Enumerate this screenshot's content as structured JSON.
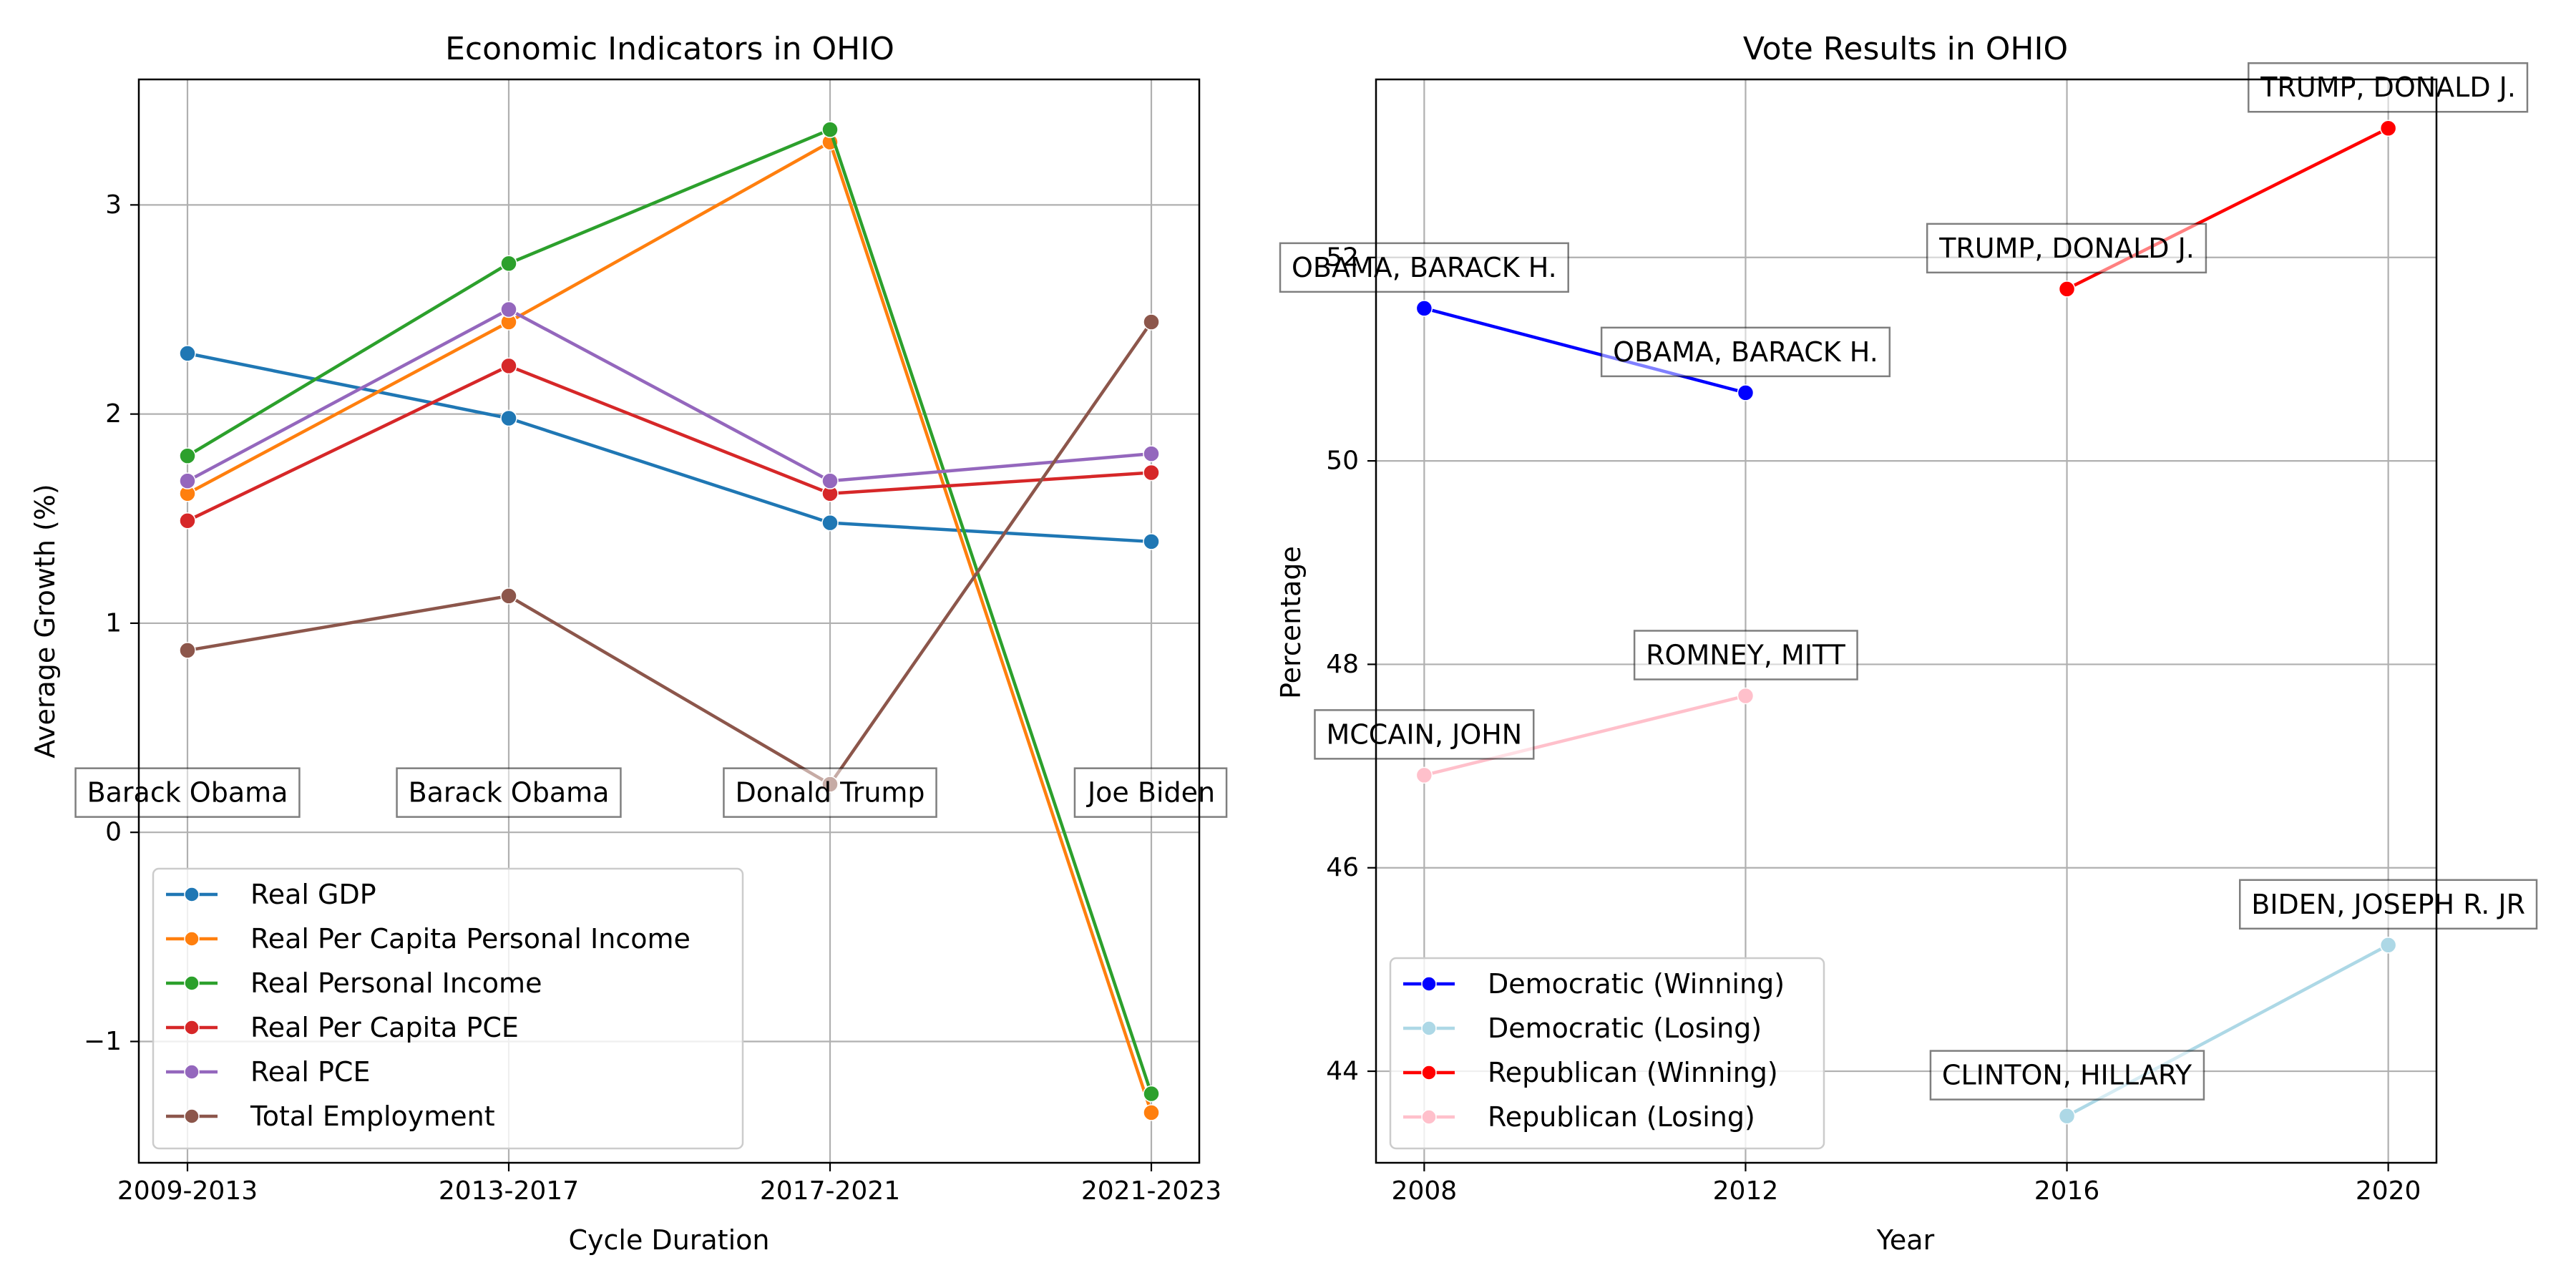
{
  "chart_data": [
    {
      "type": "line",
      "title": "Economic Indicators in OHIO",
      "xlabel": "Cycle Duration",
      "ylabel": "Average Growth (%)",
      "categories": [
        "2009-2013",
        "2013-2017",
        "2017-2021",
        "2021-2023"
      ],
      "ylim": [
        -1.58,
        3.6
      ],
      "yticks": [
        -1,
        0,
        1,
        2,
        3
      ],
      "yticklabels": [
        "−1",
        "0",
        "1",
        "2",
        "3"
      ],
      "grid": true,
      "legend_position": "lower-left",
      "series": [
        {
          "name": "Real GDP",
          "color": "#1f77b4",
          "values": [
            2.29,
            1.98,
            1.48,
            1.39
          ]
        },
        {
          "name": "Real Per Capita Personal Income",
          "color": "#ff7f0e",
          "values": [
            1.62,
            2.44,
            3.3,
            -1.34
          ]
        },
        {
          "name": "Real Personal Income",
          "color": "#2ca02c",
          "values": [
            1.8,
            2.72,
            3.36,
            -1.25
          ]
        },
        {
          "name": "Real Per Capita PCE",
          "color": "#d62728",
          "values": [
            1.49,
            2.23,
            1.62,
            1.72
          ]
        },
        {
          "name": "Real PCE",
          "color": "#9467bd",
          "values": [
            1.68,
            2.5,
            1.68,
            1.81
          ]
        },
        {
          "name": "Total Employment",
          "color": "#8c564b",
          "values": [
            0.87,
            1.13,
            0.23,
            2.44
          ]
        }
      ],
      "annotations": [
        {
          "text": "Barack Obama",
          "category": "2009-2013",
          "y": 0.19
        },
        {
          "text": "Barack Obama",
          "category": "2013-2017",
          "y": 0.19
        },
        {
          "text": "Donald Trump",
          "category": "2017-2021",
          "y": 0.19
        },
        {
          "text": "Joe Biden",
          "category": "2021-2023",
          "y": 0.19
        }
      ]
    },
    {
      "type": "line",
      "title": "Vote Results in OHIO",
      "xlabel": "Year",
      "ylabel": "Percentage",
      "xticks": [
        2008,
        2012,
        2016,
        2020
      ],
      "xlim": [
        2007.4,
        2020.6
      ],
      "ylim": [
        43.1,
        53.75
      ],
      "yticks": [
        44,
        46,
        48,
        50,
        52
      ],
      "grid": true,
      "legend_position": "lower-left",
      "series": [
        {
          "name": "Democratic (Winning)",
          "color": "#0000ff",
          "x": [
            2008,
            2012
          ],
          "values": [
            51.5,
            50.67
          ]
        },
        {
          "name": "Democratic (Losing)",
          "color": "#add8e6",
          "x": [
            2016,
            2020
          ],
          "values": [
            43.56,
            45.24
          ]
        },
        {
          "name": "Republican (Winning)",
          "color": "#ff0000",
          "x": [
            2016,
            2020
          ],
          "values": [
            51.69,
            53.27
          ]
        },
        {
          "name": "Republican (Losing)",
          "color": "#ffc0cb",
          "x": [
            2008,
            2012
          ],
          "values": [
            46.91,
            47.69
          ]
        }
      ],
      "annotations": [
        {
          "text": "OBAMA, BARACK H.",
          "x": 2008,
          "y": 51.5
        },
        {
          "text": "OBAMA, BARACK H.",
          "x": 2012,
          "y": 50.67
        },
        {
          "text": "TRUMP, DONALD J.",
          "x": 2016,
          "y": 51.69
        },
        {
          "text": "TRUMP, DONALD J.",
          "x": 2020,
          "y": 53.27
        },
        {
          "text": "ROMNEY, MITT",
          "x": 2012,
          "y": 47.69
        },
        {
          "text": "MCCAIN, JOHN",
          "x": 2008,
          "y": 46.91
        },
        {
          "text": "BIDEN, JOSEPH R. JR",
          "x": 2020,
          "y": 45.24
        },
        {
          "text": "CLINTON, HILLARY",
          "x": 2016,
          "y": 43.56
        }
      ]
    }
  ]
}
